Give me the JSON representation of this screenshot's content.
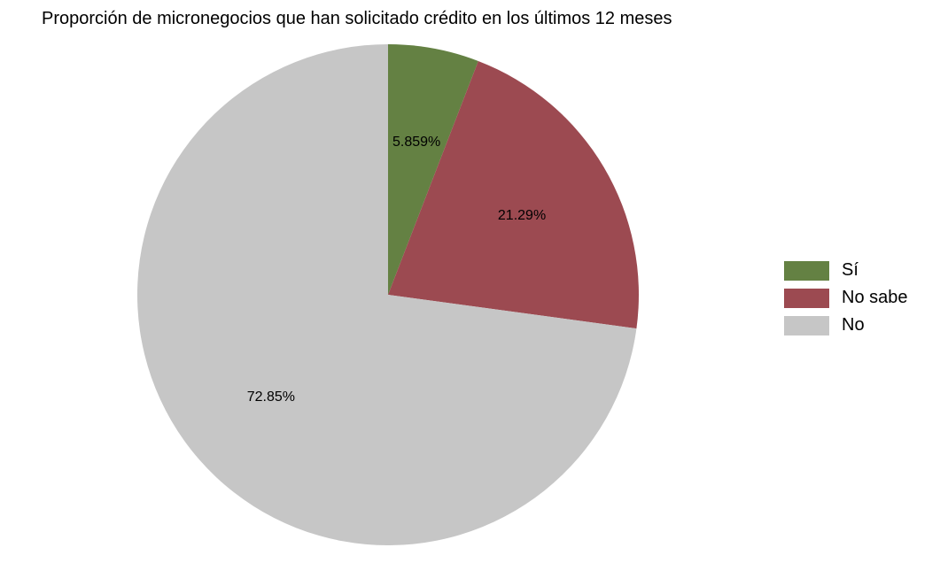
{
  "chart_data": {
    "type": "pie",
    "title": "Proporción de micronegocios que han solicitado crédito en los últimos 12 meses",
    "slices": [
      {
        "name": "Sí",
        "value": 5.859,
        "label": "5.859%",
        "color": "#648143"
      },
      {
        "name": "No sabe",
        "value": 21.29,
        "label": "21.29%",
        "color": "#9c4a51"
      },
      {
        "name": "No",
        "value": 72.85,
        "label": "72.85%",
        "color": "#c6c6c6"
      }
    ],
    "start_angle": "12 o'clock",
    "direction": "clockwise",
    "legend_position": "right"
  }
}
